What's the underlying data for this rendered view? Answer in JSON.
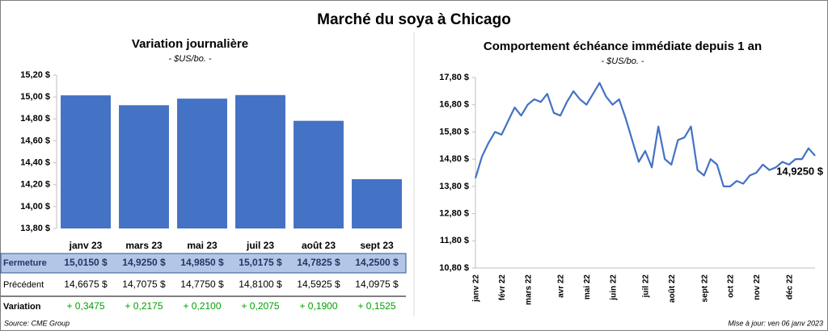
{
  "title": "Marché du soya à Chicago",
  "chart_data": [
    {
      "type": "bar",
      "title": "Variation journalière",
      "subtitle": "- $US/bo. -",
      "categories": [
        "janv 23",
        "mars 23",
        "mai 23",
        "juil 23",
        "août 23",
        "sept 23"
      ],
      "values": [
        15.015,
        14.925,
        14.985,
        15.0175,
        14.7825,
        14.25
      ],
      "color": "#4472c4",
      "ylim": [
        13.8,
        15.2
      ],
      "yticks": [
        {
          "value": 13.8,
          "label": "13,80 $"
        },
        {
          "value": 14.0,
          "label": "14,00 $"
        },
        {
          "value": 14.2,
          "label": "14,20 $"
        },
        {
          "value": 14.4,
          "label": "14,40 $"
        },
        {
          "value": 14.6,
          "label": "14,60 $"
        },
        {
          "value": 14.8,
          "label": "14,80 $"
        },
        {
          "value": 15.0,
          "label": "15,00 $"
        },
        {
          "value": 15.2,
          "label": "15,20 $"
        }
      ],
      "grid": false
    },
    {
      "type": "line",
      "title": "Comportement échéance immédiate depuis 1 an",
      "subtitle": "- $US/bo. -",
      "categories": [
        "janv 22",
        null,
        null,
        null,
        "févr 22",
        null,
        null,
        null,
        "mars 22",
        null,
        null,
        null,
        null,
        "avr 22",
        null,
        null,
        null,
        "mai 22",
        null,
        null,
        null,
        "juin 22",
        null,
        null,
        null,
        null,
        "juil 22",
        null,
        null,
        null,
        "août 22",
        null,
        null,
        null,
        null,
        "sept 22",
        null,
        null,
        null,
        "oct 22",
        null,
        null,
        null,
        "nov 22",
        null,
        null,
        null,
        null,
        "déc 22",
        null,
        null,
        null,
        null
      ],
      "values": [
        14.1,
        14.9,
        15.4,
        15.8,
        15.7,
        16.2,
        16.7,
        16.4,
        16.8,
        17.0,
        16.9,
        17.2,
        16.5,
        16.4,
        16.9,
        17.3,
        17.0,
        16.8,
        17.2,
        17.6,
        17.1,
        16.8,
        17.0,
        16.3,
        15.5,
        14.7,
        15.1,
        14.5,
        16.0,
        14.8,
        14.6,
        15.5,
        15.6,
        16.0,
        14.4,
        14.2,
        14.8,
        14.6,
        13.8,
        13.8,
        14.0,
        13.9,
        14.2,
        14.3,
        14.6,
        14.4,
        14.5,
        14.7,
        14.6,
        14.8,
        14.8,
        15.2,
        14.925
      ],
      "value_labels": [
        null,
        null,
        null,
        null,
        null,
        null,
        null,
        null,
        null,
        null,
        null,
        null,
        null,
        null,
        null,
        null,
        null,
        null,
        null,
        null,
        null,
        null,
        null,
        null,
        null,
        null,
        null,
        null,
        null,
        null,
        null,
        null,
        null,
        null,
        null,
        null,
        null,
        null,
        null,
        null,
        null,
        null,
        null,
        null,
        null,
        null,
        null,
        null,
        null,
        null,
        null,
        null,
        "14,9250 $"
      ],
      "color": "#4472c4",
      "ylim": [
        10.8,
        17.8
      ],
      "yticks": [
        {
          "value": 10.8,
          "label": "10,80 $"
        },
        {
          "value": 11.8,
          "label": "11,80 $"
        },
        {
          "value": 12.8,
          "label": "12,80 $"
        },
        {
          "value": 13.8,
          "label": "13,80 $"
        },
        {
          "value": 14.8,
          "label": "14,80 $"
        },
        {
          "value": 15.8,
          "label": "15,80 $"
        },
        {
          "value": 16.8,
          "label": "16,80 $"
        },
        {
          "value": 17.8,
          "label": "17,80 $"
        }
      ],
      "grid": false
    }
  ],
  "table": {
    "rows": [
      {
        "label": "Fermeture",
        "cells": [
          "15,0150 $",
          "14,9250 $",
          "14,9850 $",
          "15,0175 $",
          "14,7825 $",
          "14,2500 $"
        ]
      },
      {
        "label": "Précédent",
        "cells": [
          "14,6675 $",
          "14,7075 $",
          "14,7750 $",
          "14,8100 $",
          "14,5925 $",
          "14,0975 $"
        ]
      },
      {
        "label": "Variation",
        "cells": [
          "+ 0,3475",
          "+ 0,2175",
          "+ 0,2100",
          "+ 0,2075",
          "+ 0,1900",
          "+ 0,1525"
        ]
      }
    ]
  },
  "source": "Source: CME Group",
  "updated": "Mise à jour: ven 06 janv 2023"
}
